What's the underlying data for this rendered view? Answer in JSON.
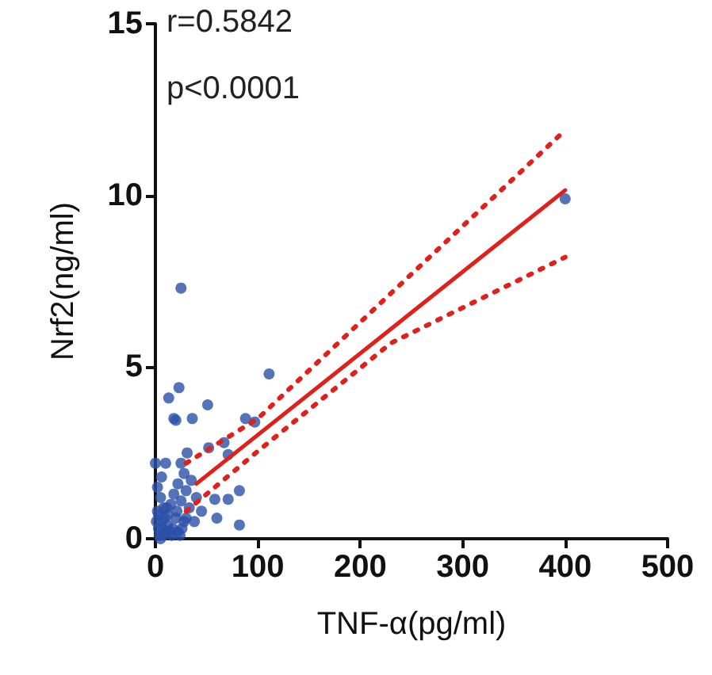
{
  "chart_data": {
    "type": "scatter",
    "xlabel": "TNF-α(pg/ml)",
    "ylabel": "Nrf2(ng/ml)",
    "annotations": [
      "r=0.5842",
      "p<0.0001"
    ],
    "xlim": [
      0,
      500
    ],
    "xticks": [
      0,
      100,
      200,
      300,
      400,
      500
    ],
    "ylim": [
      0,
      15
    ],
    "yticks": [
      0,
      5,
      10,
      15
    ],
    "grid": false,
    "series": [
      {
        "marker": "circle",
        "color": "#2b50a8",
        "x": [
          400,
          25,
          111,
          23,
          13,
          18,
          20,
          36,
          51,
          88,
          97,
          67,
          71,
          52,
          25,
          31,
          10,
          0,
          28,
          22,
          58,
          82,
          71,
          60,
          82,
          45,
          5,
          8,
          12,
          15,
          18,
          3,
          6,
          10,
          20,
          25,
          30,
          2,
          4,
          7,
          9,
          11,
          16,
          22,
          28,
          33,
          1,
          3,
          5,
          8,
          12,
          17,
          21,
          26,
          35,
          40,
          15,
          24,
          30,
          38,
          2,
          6
        ],
        "values": [
          9.9,
          7.3,
          4.8,
          4.4,
          4.1,
          3.5,
          3.45,
          3.5,
          3.9,
          3.5,
          3.4,
          2.8,
          2.45,
          2.65,
          2.2,
          2.5,
          2.2,
          2.2,
          1.9,
          1.6,
          1.15,
          1.4,
          1.15,
          0.6,
          0.4,
          0.8,
          1.2,
          0.9,
          0.7,
          1.0,
          1.3,
          0.3,
          0.5,
          0.2,
          0.6,
          1.1,
          1.4,
          0.8,
          0.1,
          0.3,
          0.6,
          0.9,
          0.1,
          0.2,
          0.5,
          0.9,
          0.5,
          0.7,
          0.0,
          0.1,
          0.4,
          0.3,
          0.8,
          0.3,
          1.7,
          1.2,
          0.2,
          0.1,
          0.6,
          0.5,
          1.5,
          1.8
        ]
      },
      {
        "type": "line",
        "color": "#e0201b",
        "line_style": "solid",
        "x": [
          40,
          400
        ],
        "values": [
          1.6,
          10.15
        ]
      },
      {
        "type": "line",
        "color": "#e0201b",
        "line_style": "dotted",
        "x": [
          30,
          100,
          230,
          400
        ],
        "values": [
          2.2,
          3.5,
          7.15,
          11.9
        ]
      },
      {
        "type": "line",
        "color": "#e0201b",
        "line_style": "dotted",
        "x": [
          30,
          100,
          230,
          400
        ],
        "values": [
          0.8,
          2.55,
          5.7,
          8.2
        ]
      }
    ]
  }
}
